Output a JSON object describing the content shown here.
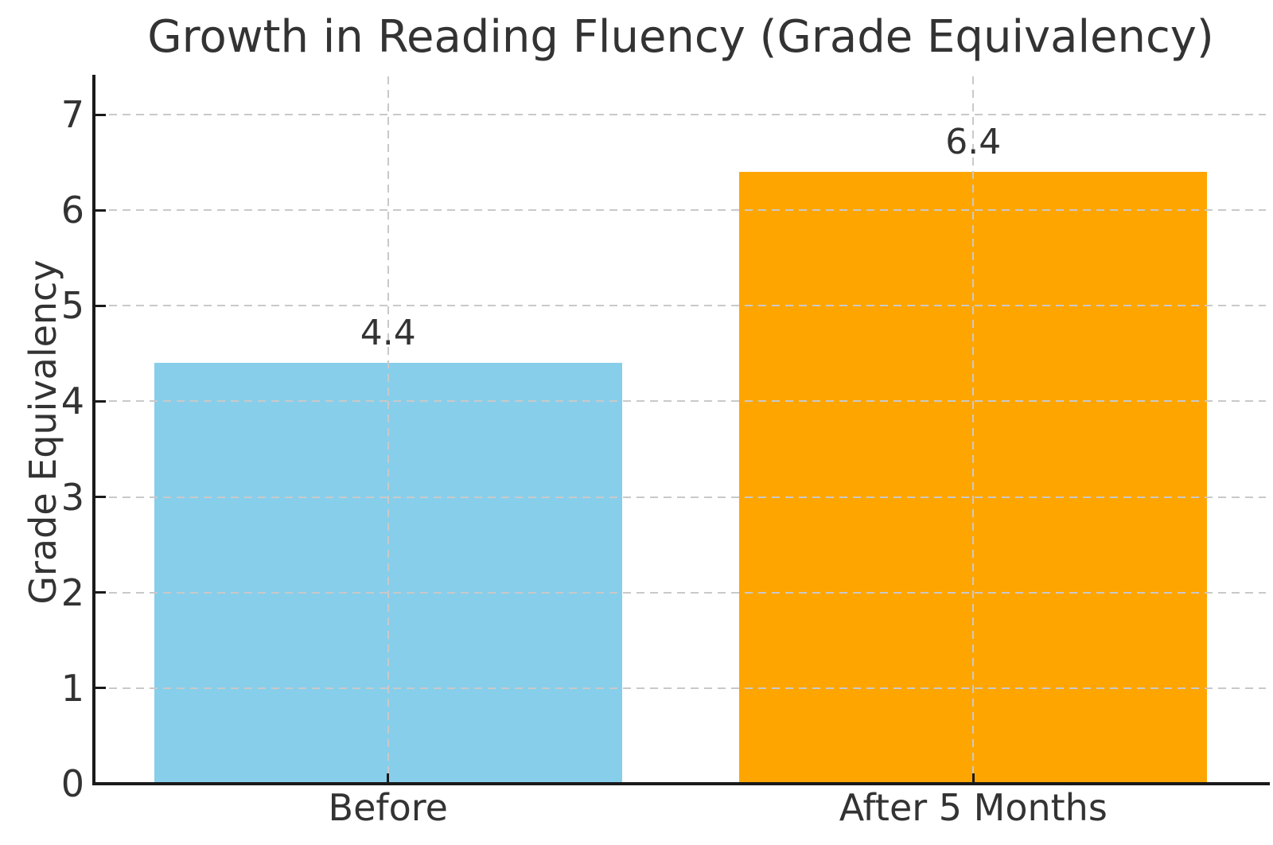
{
  "chart": {
    "title": "Growth in Reading Fluency (Grade Equivalency)",
    "y_axis_title": "Grade Equivalency"
  },
  "chart_data": {
    "type": "bar",
    "title": "Growth in Reading Fluency (Grade Equivalency)",
    "categories": [
      "Before",
      "After 5 Months"
    ],
    "values": [
      4.4,
      6.4
    ],
    "value_labels": [
      "4.4",
      "6.4"
    ],
    "bar_colors": [
      "#87CEEB",
      "#FFA500"
    ],
    "xlabel": "",
    "ylabel": "Grade Equivalency",
    "ylim": [
      0,
      7.4
    ],
    "yticks": [
      0,
      1,
      2,
      3,
      4,
      5,
      6,
      7
    ],
    "xlim": [
      -0.5,
      1.5
    ],
    "bar_width": 0.8,
    "grid": {
      "horizontal": true,
      "vertical": true,
      "style": "dashed",
      "color": "#c9c9c9"
    },
    "legend": "none",
    "colors": {
      "text": "#333333",
      "spine": "#1a1a1a",
      "grid": "#c9c9c9"
    }
  }
}
